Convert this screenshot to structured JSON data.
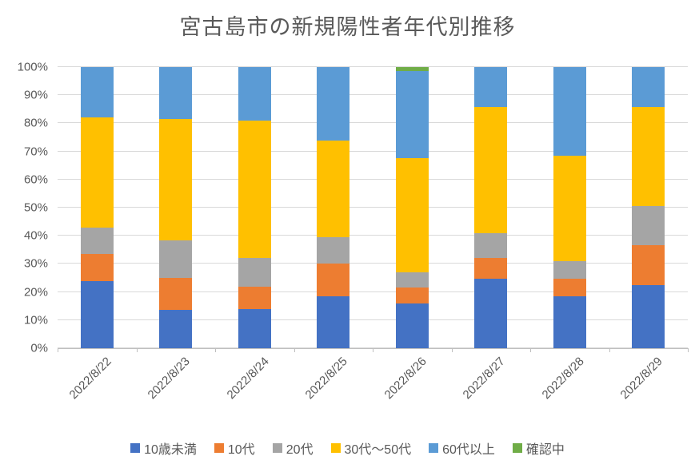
{
  "chart_data": {
    "type": "bar",
    "subtype": "stacked-100-percent",
    "title": "宮古島市の新規陽性者年代別推移",
    "xlabel": "",
    "ylabel": "",
    "ylim": [
      0,
      100
    ],
    "grid": true,
    "legend_position": "bottom",
    "y_tick_labels": [
      "0%",
      "10%",
      "20%",
      "30%",
      "40%",
      "50%",
      "60%",
      "70%",
      "80%",
      "90%",
      "100%"
    ],
    "categories": [
      "2022/8/22",
      "2022/8/23",
      "2022/8/24",
      "2022/8/25",
      "2022/8/26",
      "2022/8/27",
      "2022/8/28",
      "2022/8/29"
    ],
    "series": [
      {
        "name": "10歳未満",
        "color": "#4472C4",
        "values": [
          24.0,
          13.5,
          14.0,
          18.5,
          16.0,
          24.7,
          18.4,
          22.5
        ]
      },
      {
        "name": "10代",
        "color": "#ED7D31",
        "values": [
          9.5,
          11.5,
          8.0,
          11.5,
          5.7,
          7.3,
          6.3,
          14.2
        ]
      },
      {
        "name": "20代",
        "color": "#A5A5A5",
        "values": [
          9.5,
          13.5,
          10.0,
          9.5,
          5.4,
          9.0,
          6.3,
          14.0
        ]
      },
      {
        "name": "30代～50代",
        "color": "#FFC000",
        "values": [
          39.0,
          43.0,
          49.0,
          34.5,
          40.6,
          44.9,
          37.6,
          35.2
        ]
      },
      {
        "name": "60代以上",
        "color": "#5B9BD5",
        "values": [
          18.0,
          18.5,
          19.0,
          26.0,
          31.0,
          14.1,
          31.4,
          14.1
        ]
      },
      {
        "name": "確認中",
        "color": "#70AD47",
        "values": [
          0,
          0,
          0,
          0,
          1.3,
          0,
          0,
          0
        ]
      }
    ],
    "colors": {
      "title_text": "#595959",
      "axis_text": "#595959",
      "gridline": "#d9d9d9",
      "axis_line": "#bfbfbf",
      "background": "#ffffff"
    }
  }
}
